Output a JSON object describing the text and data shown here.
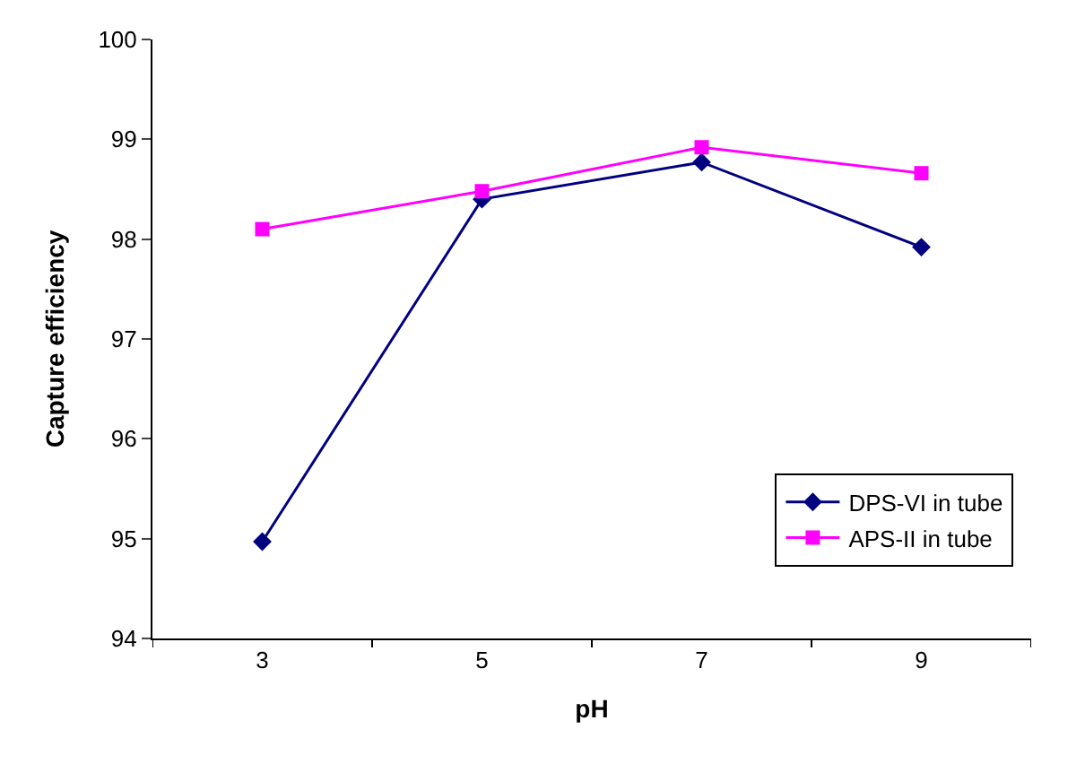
{
  "chart_data": {
    "type": "line",
    "xlabel": "pH",
    "ylabel": "Capture efficiency",
    "categories": [
      "3",
      "5",
      "7",
      "9"
    ],
    "series": [
      {
        "name": "DPS-VI in tube",
        "color": "#000080",
        "marker": "diamond",
        "values": [
          94.97,
          98.4,
          98.77,
          97.92
        ]
      },
      {
        "name": "APS-II in tube",
        "color": "#ff00ff",
        "marker": "square",
        "values": [
          98.1,
          98.48,
          98.92,
          98.66
        ]
      }
    ],
    "ylim": [
      94,
      100
    ],
    "yticks": [
      94,
      95,
      96,
      97,
      98,
      99,
      100
    ],
    "legend": "bottom right",
    "line_style": "solid"
  }
}
